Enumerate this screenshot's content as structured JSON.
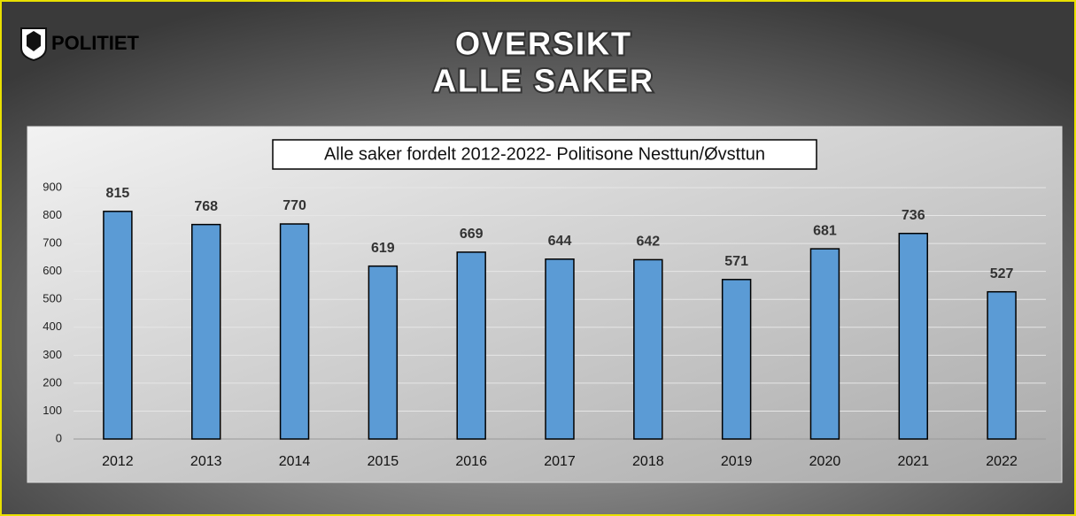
{
  "header": {
    "logo": "POLITIET",
    "title": [
      "OVERSIKT",
      "ALLE SAKER"
    ]
  },
  "chart_data": {
    "type": "bar",
    "title": "Alle saker fordelt 2012-2022- Politisone Nesttun/Øvsttun",
    "categories": [
      "2012",
      "2013",
      "2014",
      "2015",
      "2016",
      "2017",
      "2018",
      "2019",
      "2020",
      "2021",
      "2022"
    ],
    "values": [
      815,
      768,
      770,
      619,
      669,
      644,
      642,
      571,
      681,
      736,
      527
    ],
    "color": "#5b9bd5",
    "ylim": [
      0,
      900
    ],
    "yticks": [
      0,
      100,
      200,
      300,
      400,
      500,
      600,
      700,
      800,
      900
    ],
    "grid": true
  }
}
